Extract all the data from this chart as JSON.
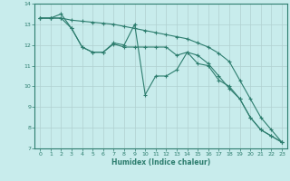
{
  "xlabel": "Humidex (Indice chaleur)",
  "bg_color": "#c8ecec",
  "grid_color": "#b0d0d0",
  "line_color": "#2d7d6e",
  "xlim": [
    -0.5,
    23.5
  ],
  "ylim": [
    7,
    14
  ],
  "yticks": [
    7,
    8,
    9,
    10,
    11,
    12,
    13,
    14
  ],
  "xticks": [
    0,
    1,
    2,
    3,
    4,
    5,
    6,
    7,
    8,
    9,
    10,
    11,
    12,
    13,
    14,
    15,
    16,
    17,
    18,
    19,
    20,
    21,
    22,
    23
  ],
  "series1": [
    [
      0,
      13.3
    ],
    [
      1,
      13.3
    ],
    [
      2,
      13.3
    ],
    [
      3,
      13.2
    ],
    [
      4,
      13.15
    ],
    [
      5,
      13.1
    ],
    [
      6,
      13.05
    ],
    [
      7,
      13.0
    ],
    [
      8,
      12.9
    ],
    [
      9,
      12.8
    ],
    [
      10,
      12.7
    ],
    [
      11,
      12.6
    ],
    [
      12,
      12.5
    ],
    [
      13,
      12.4
    ],
    [
      14,
      12.3
    ],
    [
      15,
      12.1
    ],
    [
      16,
      11.9
    ],
    [
      17,
      11.6
    ],
    [
      18,
      11.2
    ],
    [
      19,
      10.3
    ],
    [
      20,
      9.4
    ],
    [
      21,
      8.5
    ],
    [
      22,
      7.9
    ],
    [
      23,
      7.3
    ]
  ],
  "series2": [
    [
      0,
      13.3
    ],
    [
      1,
      13.3
    ],
    [
      2,
      13.5
    ],
    [
      3,
      12.8
    ],
    [
      4,
      11.9
    ],
    [
      5,
      11.65
    ],
    [
      6,
      11.65
    ],
    [
      7,
      12.1
    ],
    [
      8,
      12.0
    ],
    [
      9,
      13.0
    ],
    [
      10,
      9.6
    ],
    [
      11,
      10.5
    ],
    [
      12,
      10.5
    ],
    [
      13,
      10.8
    ],
    [
      14,
      11.65
    ],
    [
      15,
      11.5
    ],
    [
      16,
      11.1
    ],
    [
      17,
      10.5
    ],
    [
      18,
      9.9
    ],
    [
      19,
      9.4
    ],
    [
      20,
      8.5
    ],
    [
      21,
      7.9
    ],
    [
      22,
      7.6
    ],
    [
      23,
      7.3
    ]
  ],
  "series3": [
    [
      0,
      13.3
    ],
    [
      1,
      13.3
    ],
    [
      2,
      13.3
    ],
    [
      3,
      12.8
    ],
    [
      4,
      11.9
    ],
    [
      5,
      11.65
    ],
    [
      6,
      11.65
    ],
    [
      7,
      12.05
    ],
    [
      8,
      11.9
    ],
    [
      9,
      11.9
    ],
    [
      10,
      11.9
    ],
    [
      11,
      11.9
    ],
    [
      12,
      11.9
    ],
    [
      13,
      11.5
    ],
    [
      14,
      11.65
    ],
    [
      15,
      11.1
    ],
    [
      16,
      11.0
    ],
    [
      17,
      10.3
    ],
    [
      18,
      10.0
    ],
    [
      19,
      9.4
    ],
    [
      20,
      8.5
    ],
    [
      21,
      7.9
    ],
    [
      22,
      7.6
    ],
    [
      23,
      7.3
    ]
  ]
}
